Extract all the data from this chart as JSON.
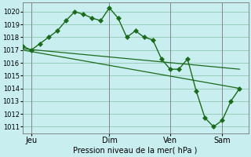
{
  "xlabel": "Pression niveau de la mer( hPa )",
  "bg_color": "#c8eef0",
  "grid_color": "#99ccbb",
  "line_color": "#1a6b1a",
  "marker_color": "#1a6b1a",
  "ylim": [
    1010.5,
    1020.7
  ],
  "yticks": [
    1011,
    1012,
    1013,
    1014,
    1015,
    1016,
    1017,
    1018,
    1019,
    1020
  ],
  "xtick_labels": [
    "Jeu",
    "Dim",
    "Ven",
    "Sam"
  ],
  "xtick_positions": [
    1,
    10,
    17,
    23
  ],
  "xlim": [
    0,
    26
  ],
  "series1_x": [
    0,
    1,
    2,
    3,
    4,
    5,
    6,
    7,
    8,
    9,
    10,
    11,
    12,
    13,
    14,
    15,
    16,
    17,
    18,
    19,
    20,
    21,
    22,
    23,
    24,
    25
  ],
  "series1_y": [
    1017.3,
    1017.0,
    1017.5,
    1018.0,
    1018.5,
    1019.3,
    1020.0,
    1019.8,
    1019.5,
    1019.3,
    1020.3,
    1019.5,
    1018.0,
    1018.5,
    1018.0,
    1017.8,
    1016.3,
    1015.5,
    1015.5,
    1016.3,
    1013.8,
    1011.7,
    1011.0,
    1011.5,
    1013.0,
    1014.0
  ],
  "series2_x": [
    0,
    25
  ],
  "series2_y": [
    1017.1,
    1015.5
  ],
  "series3_x": [
    0,
    25
  ],
  "series3_y": [
    1017.0,
    1014.0
  ],
  "vline_positions": [
    1,
    10,
    17,
    23
  ],
  "vline_color": "#888888",
  "marker_size": 3,
  "line_width": 1.0
}
